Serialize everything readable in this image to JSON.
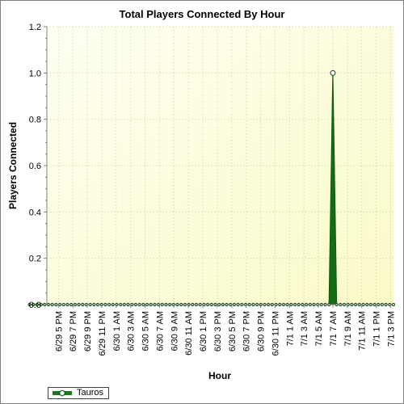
{
  "chart_data": {
    "type": "area",
    "title": "Total Players Connected By Hour",
    "xlabel": "Hour",
    "ylabel": "Players Connected",
    "ylim": [
      0,
      1.2
    ],
    "yticks": [
      "0.0",
      "0.2",
      "0.4",
      "0.6",
      "0.8",
      "1.0",
      "1.2"
    ],
    "grid": true,
    "legend_position": "bottom-left",
    "xtick_labels": [
      "6/29 5 PM",
      "6/29 7 PM",
      "6/29 9 PM",
      "6/29 11 PM",
      "6/30 1 AM",
      "6/30 3 AM",
      "6/30 5 AM",
      "6/30 7 AM",
      "6/30 9 AM",
      "6/30 11 AM",
      "6/30 1 PM",
      "6/30 3 PM",
      "6/30 5 PM",
      "6/30 7 PM",
      "6/30 9 PM",
      "6/30 11 PM",
      "7/1 1 AM",
      "7/1 3 AM",
      "7/1 5 AM",
      "7/1 7 AM",
      "7/1 9 AM",
      "7/1 11 AM",
      "7/1 1 PM",
      "7/1 3 PM"
    ],
    "series": [
      {
        "name": "Tauros",
        "color": "#1a7a1a",
        "values": [
          0,
          0,
          0,
          0,
          0,
          0,
          0,
          0,
          0,
          0,
          0,
          0,
          0,
          0,
          0,
          0,
          0,
          0,
          0,
          0,
          0,
          0,
          0,
          0,
          0,
          0,
          0,
          0,
          0,
          0,
          0,
          0,
          0,
          0,
          0,
          0,
          0,
          0,
          0,
          0,
          0,
          0,
          0,
          0,
          0,
          0,
          0,
          0,
          0,
          0,
          0,
          0,
          0,
          0,
          0,
          0,
          0,
          0,
          0,
          0,
          0,
          0,
          0,
          0,
          0,
          0,
          0,
          0,
          0,
          0,
          0,
          0,
          0,
          0,
          0,
          0,
          0,
          0,
          0,
          0,
          1,
          0,
          0,
          0,
          0,
          0,
          0,
          0,
          0,
          0,
          0,
          0,
          0,
          0,
          0,
          0,
          0
        ]
      }
    ]
  }
}
